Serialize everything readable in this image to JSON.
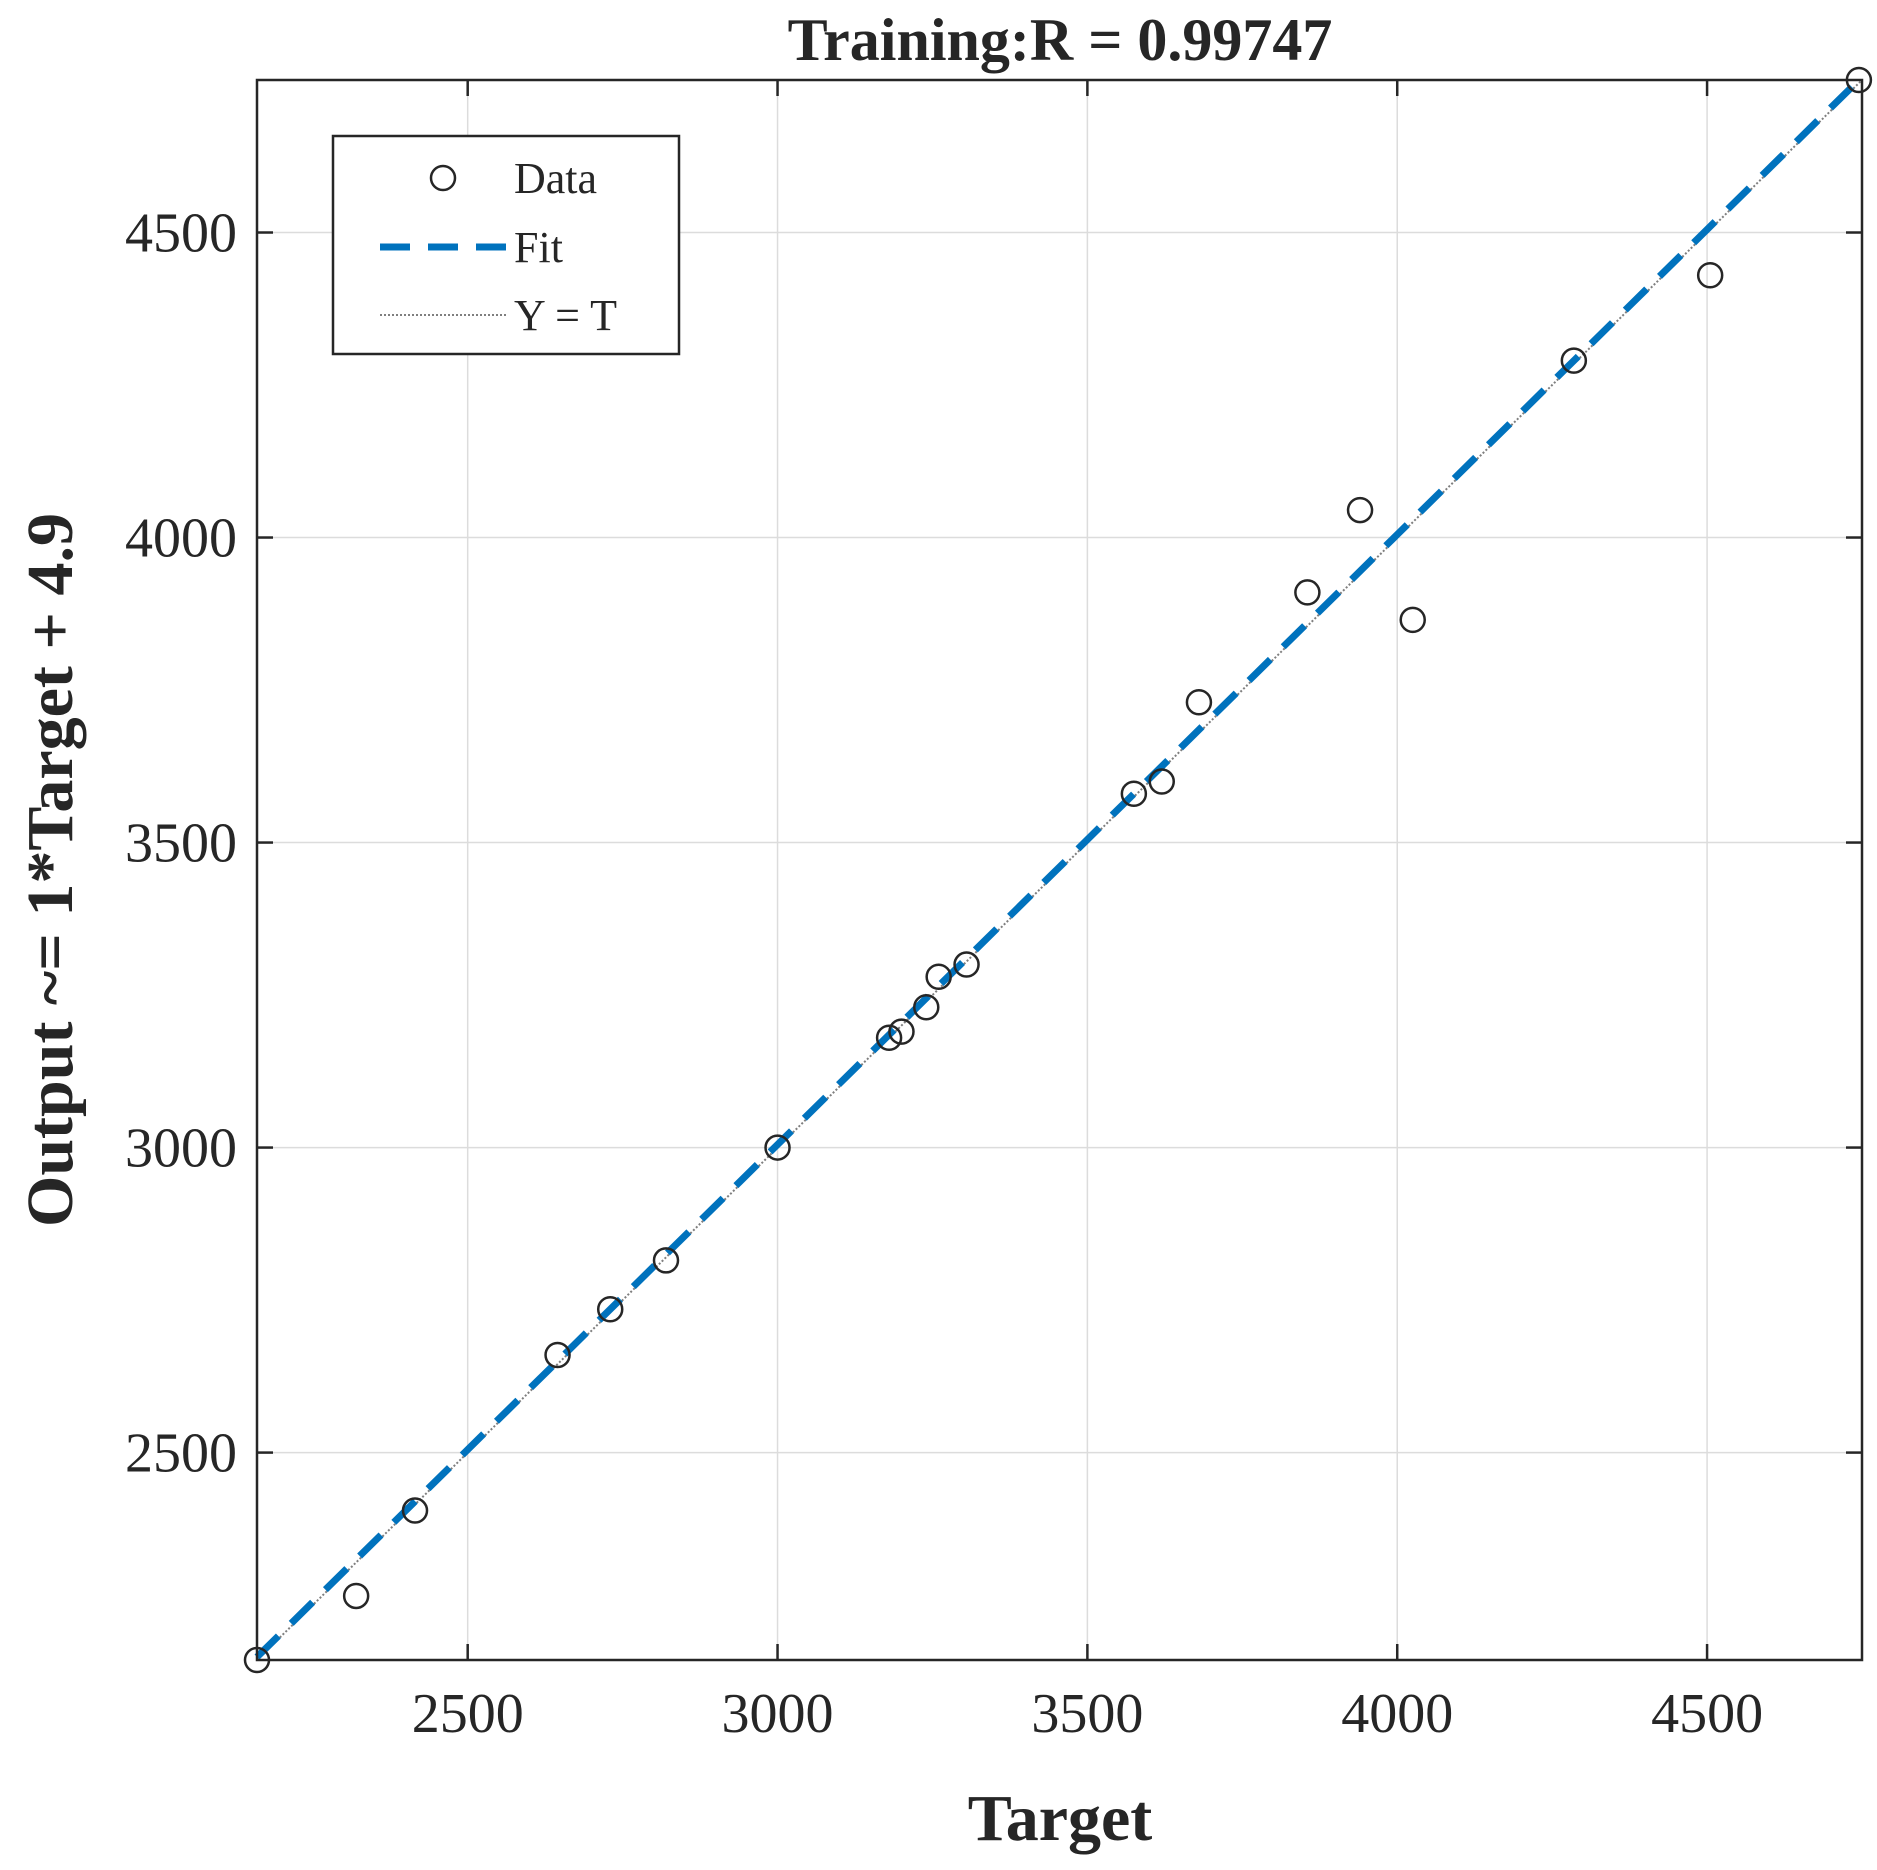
{
  "chart_data": {
    "type": "scatter",
    "title": "Training:R = 0.99747",
    "xlabel": "Target",
    "ylabel": "Output ~= 1*Target + 4.9",
    "xlim": [
      2160,
      4750
    ],
    "ylim": [
      2160,
      4750
    ],
    "xticks": [
      2500,
      3000,
      3500,
      4000,
      4500
    ],
    "yticks": [
      2500,
      3000,
      3500,
      4000,
      4500
    ],
    "grid": true,
    "legend_position": "top-left",
    "fit": {
      "slope": 1,
      "intercept": 4.9
    },
    "series": [
      {
        "name": "Data",
        "marker": "open-circle",
        "x": [
          2160,
          2320,
          2415,
          2645,
          2730,
          2820,
          3000,
          3180,
          3200,
          3240,
          3260,
          3305,
          3575,
          3620,
          3680,
          3855,
          3940,
          4025,
          4285,
          4505,
          4745
        ],
        "y": [
          2160,
          2265,
          2405,
          2660,
          2735,
          2815,
          3000,
          3180,
          3190,
          3230,
          3280,
          3300,
          3580,
          3600,
          3730,
          3910,
          4045,
          3865,
          4290,
          4430,
          4750
        ]
      },
      {
        "name": "Fit",
        "line_style": "dashed",
        "color": "#0072BD"
      },
      {
        "name": "Y = T",
        "line_style": "dotted",
        "color": "#7f7f7f"
      }
    ]
  }
}
